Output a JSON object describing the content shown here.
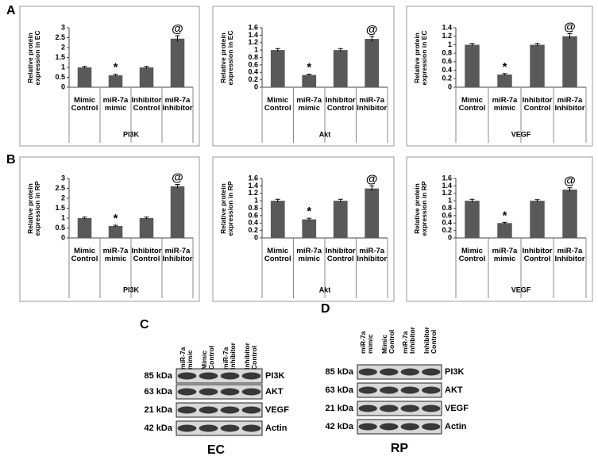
{
  "panel_labels": [
    "A",
    "B"
  ],
  "chart_data": [
    {
      "type": "bar",
      "ylabel": "Relative protein expression in EC",
      "xlabel": "PI3K",
      "categories": [
        "Mimic Control",
        "miR-7a mimic",
        "Inhibitor Control",
        "miR-7a Inhibitor"
      ],
      "values": [
        1,
        0.6,
        1,
        2.45
      ],
      "errors": [
        0.05,
        0.05,
        0.05,
        0.15
      ],
      "markers": [
        null,
        "*",
        null,
        "@"
      ],
      "color": "#595959",
      "ylim": [
        0,
        3
      ],
      "yticks": [
        0,
        0.5,
        1,
        1.5,
        2,
        2.5,
        3
      ]
    },
    {
      "type": "bar",
      "ylabel": "Relative protein expression in EC",
      "xlabel": "Akt",
      "categories": [
        "Mimic Control",
        "miR-7a mimic",
        "Inhibitor Control",
        "miR-7a Inhibitor"
      ],
      "values": [
        1,
        0.33,
        1,
        1.3
      ],
      "errors": [
        0.04,
        0.02,
        0.04,
        0.07
      ],
      "markers": [
        null,
        "*",
        null,
        "@"
      ],
      "color": "#595959",
      "ylim": [
        0,
        1.6
      ],
      "yticks": [
        0,
        0.2,
        0.4,
        0.6,
        0.8,
        1,
        1.2,
        1.4,
        1.6
      ]
    },
    {
      "type": "bar",
      "ylabel": "Relative protein expression in EC",
      "xlabel": "VEGF",
      "categories": [
        "Mimic Control",
        "miR-7a mimic",
        "Inhibitor Control",
        "miR-7a Inhibitor"
      ],
      "values": [
        1,
        0.3,
        1,
        1.2
      ],
      "errors": [
        0.03,
        0.02,
        0.03,
        0.06
      ],
      "markers": [
        null,
        "*",
        null,
        "@"
      ],
      "color": "#595959",
      "ylim": [
        0,
        1.4
      ],
      "yticks": [
        0,
        0.2,
        0.4,
        0.6,
        0.8,
        1,
        1.2,
        1.4
      ]
    },
    {
      "type": "bar",
      "ylabel": "Relative protein expression in RP",
      "xlabel": "PI3K",
      "categories": [
        "Mimic Control",
        "miR-7a mimic",
        "Inhibitor Control",
        "miR-7a Inhibitor"
      ],
      "values": [
        1,
        0.6,
        1,
        2.6
      ],
      "errors": [
        0.05,
        0.04,
        0.05,
        0.1
      ],
      "markers": [
        null,
        "*",
        null,
        "@"
      ],
      "color": "#595959",
      "ylim": [
        0,
        3
      ],
      "yticks": [
        0,
        0.5,
        1,
        1.5,
        2,
        2.5,
        3
      ]
    },
    {
      "type": "bar",
      "ylabel": "Relative protein expression in RP",
      "xlabel": "Akt",
      "categories": [
        "Mimic Control",
        "miR-7a mimic",
        "Inhibitor Control",
        "miR-7a Inhibitor"
      ],
      "values": [
        1,
        0.5,
        1,
        1.33
      ],
      "errors": [
        0.04,
        0.03,
        0.04,
        0.07
      ],
      "markers": [
        null,
        "*",
        null,
        "@"
      ],
      "color": "#595959",
      "ylim": [
        0,
        1.6
      ],
      "yticks": [
        0,
        0.2,
        0.4,
        0.6,
        0.8,
        1,
        1.2,
        1.4,
        1.6
      ]
    },
    {
      "type": "bar",
      "ylabel": "Relative protein expression in RP",
      "xlabel": "VEGF",
      "categories": [
        "Mimic Control",
        "miR-7a mimic",
        "Inhibitor Control",
        "miR-7a Inhibitor"
      ],
      "values": [
        1,
        0.4,
        1,
        1.3
      ],
      "errors": [
        0.04,
        0.02,
        0.03,
        0.05
      ],
      "markers": [
        null,
        "*",
        null,
        "@"
      ],
      "color": "#595959",
      "ylim": [
        0,
        1.6
      ],
      "yticks": [
        0,
        0.2,
        0.4,
        0.6,
        0.8,
        1,
        1.2,
        1.4,
        1.6
      ]
    }
  ],
  "blots": [
    {
      "label": "C",
      "caption": "EC",
      "lanes": [
        "miR-7a mimic",
        "Mimic Control",
        "miR-7a Inhibitor",
        "Inhibitor Control"
      ],
      "rows": [
        {
          "kda": "85 kDa",
          "protein": "PI3K"
        },
        {
          "kda": "63 kDa",
          "protein": "AKT"
        },
        {
          "kda": "21 kDa",
          "protein": "VEGF"
        },
        {
          "kda": "42 kDa",
          "protein": "Actin"
        }
      ]
    },
    {
      "label": "D",
      "caption": "RP",
      "lanes": [
        "miR-7a mimic",
        "Mimic Control",
        "miR-7a Inhibitor",
        "Inhibitor Control"
      ],
      "rows": [
        {
          "kda": "85 kDa",
          "protein": "PI3K"
        },
        {
          "kda": "63 kDa",
          "protein": "AKT"
        },
        {
          "kda": "21 kDa",
          "protein": "VEGF"
        },
        {
          "kda": "42 kDa",
          "protein": "Actin"
        }
      ]
    }
  ]
}
